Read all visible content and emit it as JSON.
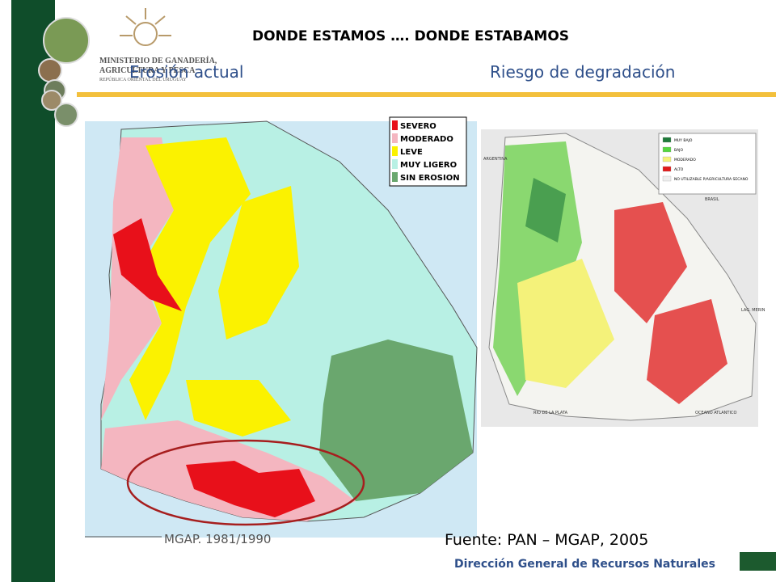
{
  "header": {
    "title": "DONDE ESTAMOS …. DONDE ESTABAMOS",
    "ministry": [
      "MINISTERIO DE GANADERÍA,",
      "AGRICULTURA Y PESCA",
      "REPÚBLICA ORIENTAL DEL URUGUAY"
    ]
  },
  "left_map": {
    "heading": "Erosión actual",
    "legend": [
      {
        "label": "SEVERO",
        "color": "#e8101a"
      },
      {
        "label": "MODERADO",
        "color": "#f4b6c0"
      },
      {
        "label": "LEVE",
        "color": "#fbf200"
      },
      {
        "label": "MUY LIGERO",
        "color": "#b8f0e4"
      },
      {
        "label": "SIN EROSION",
        "color": "#6aa76e"
      }
    ],
    "caption": "MGAP. 1981/1990"
  },
  "right_map": {
    "heading": "Riesgo de degradación",
    "legend": [
      {
        "label": "MUY BAJO",
        "color": "#1f7a3a"
      },
      {
        "label": "BAJO",
        "color": "#55d640"
      },
      {
        "label": "MODERADO",
        "color": "#f4f27a"
      },
      {
        "label": "ALTO",
        "color": "#e01a1a"
      },
      {
        "label": "NO UTILIZABLE P/AGRICULTURA SECANO",
        "color": "#eeeeee"
      }
    ],
    "places": [
      "ARGENTINA",
      "BRASIL",
      "LAG. MERIN",
      "RIO DE LA PLATA",
      "OCEANO ATLANTICO"
    ]
  },
  "footer": {
    "source": "Fuente: PAN – MGAP, 2005",
    "department": "Dirección General de Recursos Naturales"
  }
}
